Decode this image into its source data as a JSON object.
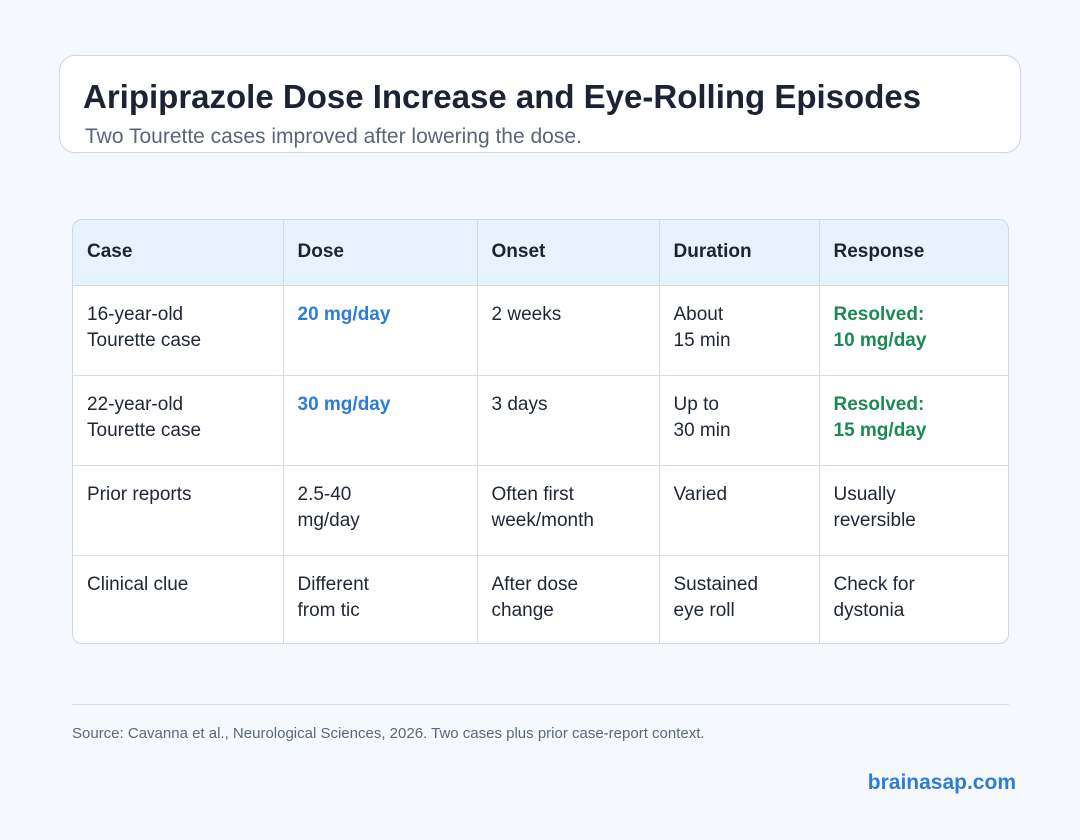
{
  "header": {
    "title": "Aripiprazole Dose Increase and Eye-Rolling Episodes",
    "subtitle": "Two Tourette cases improved after lowering the dose."
  },
  "table": {
    "columns": [
      "Case",
      "Dose",
      "Onset",
      "Duration",
      "Response"
    ],
    "rows": [
      {
        "case": "16-year-old\nTourette case",
        "dose": "20 mg/day",
        "onset": "2 weeks",
        "duration": "About\n15 min",
        "response": "Resolved:\n10 mg/day",
        "dose_highlight": true,
        "response_highlight": true
      },
      {
        "case": "22-year-old\nTourette case",
        "dose": "30 mg/day",
        "onset": "3 days",
        "duration": "Up to\n30 min",
        "response": "Resolved:\n15 mg/day",
        "dose_highlight": true,
        "response_highlight": true
      },
      {
        "case": "Prior reports",
        "dose": "2.5-40\nmg/day",
        "onset": "Often first\nweek/month",
        "duration": "Varied",
        "response": "Usually\nreversible",
        "dose_highlight": false,
        "response_highlight": false
      },
      {
        "case": "Clinical clue",
        "dose": "Different\nfrom tic",
        "onset": "After dose\nchange",
        "duration": "Sustained\neye roll",
        "response": "Check for\ndystonia",
        "dose_highlight": false,
        "response_highlight": false
      }
    ]
  },
  "footer": {
    "source": "Source: Cavanna et al., Neurological Sciences, 2026. Two cases plus prior case-report context.",
    "brand": "brainasap.com"
  },
  "colors": {
    "background": "#f5f8fc",
    "header_bg": "#e6f2fd",
    "dose_accent": "#2e7cd6",
    "response_accent": "#1d8a55",
    "border": "#cfd8e3"
  }
}
